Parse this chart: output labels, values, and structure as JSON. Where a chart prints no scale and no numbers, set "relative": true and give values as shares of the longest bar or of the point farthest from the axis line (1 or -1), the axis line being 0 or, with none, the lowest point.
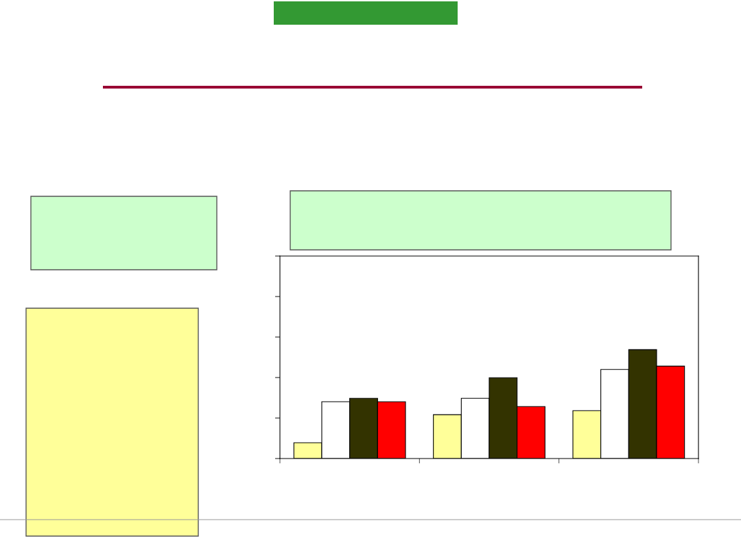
{
  "chart_data": {
    "type": "bar",
    "relative": true,
    "categories": [
      null,
      null,
      null
    ],
    "series": [
      {
        "color": "#ffff99",
        "values": [
          0.145,
          0.403,
          0.44
        ]
      },
      {
        "color": "#ffffff",
        "values": [
          0.522,
          0.553,
          0.818
        ]
      },
      {
        "color": "#333300",
        "values": [
          0.553,
          0.742,
          1
        ]
      },
      {
        "color": "#ff0000",
        "values": [
          0.522,
          0.478,
          0.849
        ]
      }
    ],
    "grid": false,
    "legend": false
  }
}
